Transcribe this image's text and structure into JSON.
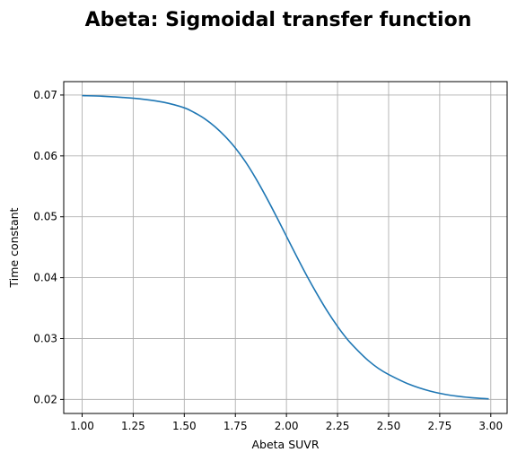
{
  "chart_data": {
    "type": "line",
    "title": "Abeta: Sigmoidal transfer function",
    "xlabel": "Abeta SUVR",
    "ylabel": "Time constant",
    "xlim": [
      0.91,
      3.08
    ],
    "ylim": [
      0.0177,
      0.0722
    ],
    "xticks": [
      1.0,
      1.25,
      1.5,
      1.75,
      2.0,
      2.25,
      2.5,
      2.75,
      3.0
    ],
    "xtick_labels": [
      "1.00",
      "1.25",
      "1.50",
      "1.75",
      "2.00",
      "2.25",
      "2.50",
      "2.75",
      "3.00"
    ],
    "yticks": [
      0.02,
      0.03,
      0.04,
      0.05,
      0.06,
      0.07
    ],
    "ytick_labels": [
      "0.02",
      "0.03",
      "0.04",
      "0.05",
      "0.06",
      "0.07"
    ],
    "grid": true,
    "series": [
      {
        "color": "#1f77b4",
        "x": [
          1.0,
          1.1,
          1.2,
          1.3,
          1.4,
          1.5,
          1.55,
          1.6,
          1.65,
          1.7,
          1.75,
          1.8,
          1.85,
          1.9,
          1.95,
          2.0,
          2.05,
          2.1,
          2.15,
          2.2,
          2.25,
          2.3,
          2.35,
          2.4,
          2.45,
          2.5,
          2.6,
          2.7,
          2.8,
          2.9,
          2.99
        ],
        "y": [
          0.0699,
          0.0698,
          0.0696,
          0.0693,
          0.0688,
          0.0679,
          0.0671,
          0.0661,
          0.0648,
          0.0632,
          0.0613,
          0.059,
          0.0563,
          0.0533,
          0.0501,
          0.0468,
          0.0435,
          0.0403,
          0.0373,
          0.0345,
          0.032,
          0.0298,
          0.028,
          0.0264,
          0.0251,
          0.0241,
          0.0225,
          0.0214,
          0.0207,
          0.0203,
          0.0201
        ]
      }
    ]
  }
}
